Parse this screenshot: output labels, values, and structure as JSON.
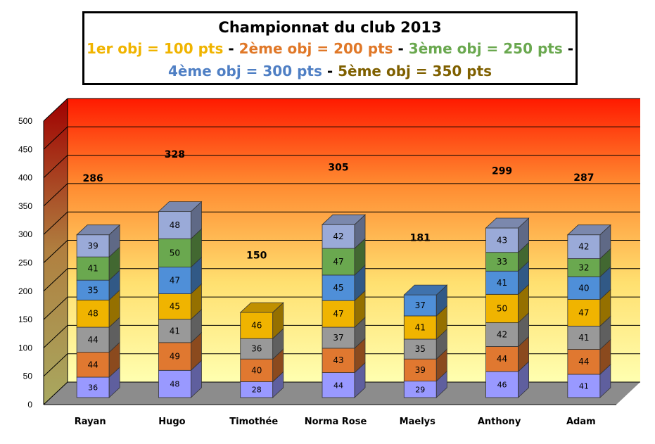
{
  "header": {
    "title": "Championnat du club 2013",
    "legend_line1": [
      {
        "text": "1er obj = 100 pts",
        "color": "#f0b400"
      },
      {
        "text": " - ",
        "color": "#000000"
      },
      {
        "text": "2ème obj = 200 pts",
        "color": "#e07828"
      },
      {
        "text": " - ",
        "color": "#000000"
      },
      {
        "text": "3ème obj = 250 pts",
        "color": "#6aa84f"
      },
      {
        "text": " -",
        "color": "#000000"
      }
    ],
    "legend_line2": [
      {
        "text": "4ème obj = 300 pts",
        "color": "#4f7fc4"
      },
      {
        "text": " - ",
        "color": "#000000"
      },
      {
        "text": "5ème obj = 350 pts",
        "color": "#7f6000"
      }
    ]
  },
  "chart_data": {
    "type": "bar",
    "stacked": true,
    "categories": [
      "Rayan",
      "Hugo",
      "Timothée",
      "Norma Rose",
      "Maelys",
      "Anthony",
      "Adam"
    ],
    "ylim": [
      0,
      500
    ],
    "yticks": [
      0,
      50,
      100,
      150,
      200,
      250,
      300,
      350,
      400,
      450,
      500
    ],
    "grid": true,
    "series_colors": [
      "#9999ff",
      "#e07830",
      "#999999",
      "#f0b400",
      "#4f8fd8",
      "#6aa84f",
      "#9aaad8",
      "#b8860b"
    ],
    "stacks": [
      [
        36,
        44,
        44,
        48,
        35,
        41,
        39
      ],
      [
        48,
        49,
        41,
        45,
        47,
        50,
        48
      ],
      [
        28,
        40,
        36,
        46
      ],
      [
        44,
        43,
        37,
        47,
        45,
        47,
        42
      ],
      [
        29,
        39,
        35,
        41,
        37
      ],
      [
        46,
        44,
        42,
        50,
        41,
        33,
        43
      ],
      [
        41,
        44,
        41,
        47,
        40,
        32,
        42
      ]
    ],
    "stack_colors": [
      [
        "#9999ff",
        "#e07830",
        "#999999",
        "#f0b400",
        "#4f8fd8",
        "#6aa84f",
        "#9aaad8"
      ],
      [
        "#9999ff",
        "#e07830",
        "#999999",
        "#f0b400",
        "#4f8fd8",
        "#6aa84f",
        "#9aaad8"
      ],
      [
        "#9999ff",
        "#e07830",
        "#999999",
        "#f0b400"
      ],
      [
        "#9999ff",
        "#e07830",
        "#999999",
        "#f0b400",
        "#4f8fd8",
        "#6aa84f",
        "#9aaad8"
      ],
      [
        "#9999ff",
        "#e07830",
        "#999999",
        "#f0b400",
        "#4f8fd8"
      ],
      [
        "#9999ff",
        "#e07830",
        "#999999",
        "#f0b400",
        "#4f8fd8",
        "#6aa84f",
        "#9aaad8"
      ],
      [
        "#9999ff",
        "#e07830",
        "#999999",
        "#f0b400",
        "#4f8fd8",
        "#6aa84f",
        "#9aaad8"
      ]
    ],
    "totals": [
      286,
      328,
      150,
      305,
      181,
      299,
      287
    ],
    "total_label_values": [
      286,
      328,
      150,
      305,
      181,
      299,
      287
    ]
  }
}
